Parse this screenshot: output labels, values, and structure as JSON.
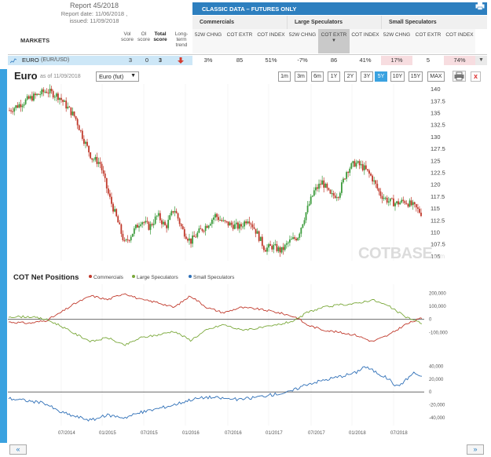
{
  "report": {
    "title": "Report 45/2018",
    "date_line": "Report date: 11/06/2018 ,",
    "issued_line": "issued: 11/09/2018"
  },
  "table_header": {
    "markets": "MARKETS",
    "vol_score": "Vol score",
    "oi_score": "OI score",
    "total_score": "Total score",
    "long_term_trend": "Long-term trend",
    "classic_data": "CLASSIC DATA – FUTURES ONLY",
    "groups": [
      "Commercials",
      "Large Speculators",
      "Small Speculators"
    ],
    "columns": [
      {
        "label": "52W CHNG"
      },
      {
        "label": "COT EXTR"
      },
      {
        "label": "COT INDEX"
      },
      {
        "label": "52W CHNG"
      },
      {
        "label": "COT EXTR",
        "sorted": true
      },
      {
        "label": "COT INDEX"
      },
      {
        "label": "52W CHNG"
      },
      {
        "label": "COT EXTR"
      },
      {
        "label": "COT INDEX"
      }
    ]
  },
  "row": {
    "market": "EURO",
    "symbol": "(EUR/USD)",
    "vol_score": "3",
    "oi_score": "0",
    "total_score": "3",
    "trend": "down",
    "values": [
      "3%",
      "85",
      "51%",
      "-7%",
      "86",
      "41%",
      "17%",
      "5",
      "74%"
    ],
    "highlight": [
      false,
      false,
      false,
      false,
      false,
      false,
      true,
      false,
      true
    ]
  },
  "chart_header": {
    "title": "Euro",
    "as_of": "as of 11/09/2018",
    "contract": "Euro (fut)",
    "ranges": [
      "1m",
      "3m",
      "6m",
      "1Y",
      "2Y",
      "3Y",
      "5Y",
      "10Y",
      "15Y",
      "MAX"
    ],
    "active_range": "5Y",
    "close": "x"
  },
  "watermark": {
    "main": "COTBASE",
    "suffix": ".com"
  },
  "positions": {
    "title": "COT Net Positions",
    "legend": [
      "Commercials",
      "Large Speculators",
      "Small Speculators"
    ]
  },
  "nav": {
    "prev": "«",
    "next": "»"
  },
  "chart_data": [
    {
      "type": "candlestick",
      "title": "Euro",
      "x_tick_labels": [
        "07/2014",
        "01/2015",
        "07/2015",
        "01/2016",
        "07/2016",
        "01/2017",
        "07/2017",
        "01/2018",
        "07/2018"
      ],
      "y_ticks": [
        105,
        107.5,
        110,
        112.5,
        115,
        117.5,
        120,
        122.5,
        125,
        127.5,
        130,
        132.5,
        135,
        137.5,
        140
      ],
      "ylim": [
        104,
        141
      ],
      "close_path": [
        {
          "x": 0.0,
          "y": 135.5
        },
        {
          "x": 0.05,
          "y": 138.0
        },
        {
          "x": 0.09,
          "y": 139.6
        },
        {
          "x": 0.12,
          "y": 138.4
        },
        {
          "x": 0.16,
          "y": 134.0
        },
        {
          "x": 0.18,
          "y": 129.5
        },
        {
          "x": 0.2,
          "y": 125.5
        },
        {
          "x": 0.22,
          "y": 124.5
        },
        {
          "x": 0.24,
          "y": 118.0
        },
        {
          "x": 0.26,
          "y": 113.0
        },
        {
          "x": 0.28,
          "y": 107.5
        },
        {
          "x": 0.3,
          "y": 110.0
        },
        {
          "x": 0.32,
          "y": 112.5
        },
        {
          "x": 0.34,
          "y": 111.0
        },
        {
          "x": 0.36,
          "y": 113.5
        },
        {
          "x": 0.38,
          "y": 111.0
        },
        {
          "x": 0.4,
          "y": 115.0
        },
        {
          "x": 0.42,
          "y": 110.5
        },
        {
          "x": 0.44,
          "y": 108.0
        },
        {
          "x": 0.46,
          "y": 110.0
        },
        {
          "x": 0.48,
          "y": 111.5
        },
        {
          "x": 0.5,
          "y": 113.5
        },
        {
          "x": 0.52,
          "y": 112.0
        },
        {
          "x": 0.54,
          "y": 111.5
        },
        {
          "x": 0.56,
          "y": 111.0
        },
        {
          "x": 0.58,
          "y": 113.0
        },
        {
          "x": 0.6,
          "y": 110.0
        },
        {
          "x": 0.62,
          "y": 106.5
        },
        {
          "x": 0.64,
          "y": 107.0
        },
        {
          "x": 0.66,
          "y": 106.0
        },
        {
          "x": 0.68,
          "y": 108.0
        },
        {
          "x": 0.7,
          "y": 109.0
        },
        {
          "x": 0.72,
          "y": 114.0
        },
        {
          "x": 0.74,
          "y": 118.5
        },
        {
          "x": 0.76,
          "y": 120.5
        },
        {
          "x": 0.78,
          "y": 117.5
        },
        {
          "x": 0.8,
          "y": 118.0
        },
        {
          "x": 0.82,
          "y": 123.0
        },
        {
          "x": 0.84,
          "y": 124.5
        },
        {
          "x": 0.86,
          "y": 123.5
        },
        {
          "x": 0.88,
          "y": 121.5
        },
        {
          "x": 0.9,
          "y": 118.0
        },
        {
          "x": 0.92,
          "y": 116.5
        },
        {
          "x": 0.94,
          "y": 116.0
        },
        {
          "x": 0.96,
          "y": 116.5
        },
        {
          "x": 0.98,
          "y": 115.5
        },
        {
          "x": 1.0,
          "y": 114.0
        }
      ]
    },
    {
      "type": "line",
      "title": "COT Net Positions",
      "y_ticks_upper": [
        -100000,
        0,
        100000,
        200000
      ],
      "y_ticks_lower": [
        -40000,
        -20000,
        0,
        20000,
        40000
      ],
      "series": [
        {
          "name": "Commercials",
          "color": "#c0392b",
          "points": [
            [
              0.0,
              -20000
            ],
            [
              0.05,
              -30000
            ],
            [
              0.09,
              -10000
            ],
            [
              0.12,
              40000
            ],
            [
              0.16,
              120000
            ],
            [
              0.2,
              180000
            ],
            [
              0.24,
              150000
            ],
            [
              0.28,
              200000
            ],
            [
              0.32,
              150000
            ],
            [
              0.36,
              130000
            ],
            [
              0.4,
              90000
            ],
            [
              0.44,
              180000
            ],
            [
              0.48,
              90000
            ],
            [
              0.52,
              50000
            ],
            [
              0.56,
              90000
            ],
            [
              0.6,
              80000
            ],
            [
              0.64,
              60000
            ],
            [
              0.68,
              30000
            ],
            [
              0.7,
              10000
            ],
            [
              0.72,
              -40000
            ],
            [
              0.76,
              -80000
            ],
            [
              0.8,
              -100000
            ],
            [
              0.84,
              -120000
            ],
            [
              0.88,
              -170000
            ],
            [
              0.92,
              -120000
            ],
            [
              0.96,
              -40000
            ],
            [
              1.0,
              10000
            ]
          ]
        },
        {
          "name": "Large Speculators",
          "color": "#7aa83a",
          "points": [
            [
              0.0,
              20000
            ],
            [
              0.05,
              20000
            ],
            [
              0.09,
              0
            ],
            [
              0.12,
              -40000
            ],
            [
              0.16,
              -110000
            ],
            [
              0.2,
              -170000
            ],
            [
              0.24,
              -140000
            ],
            [
              0.28,
              -200000
            ],
            [
              0.32,
              -140000
            ],
            [
              0.36,
              -120000
            ],
            [
              0.4,
              -90000
            ],
            [
              0.44,
              -160000
            ],
            [
              0.48,
              -80000
            ],
            [
              0.52,
              -40000
            ],
            [
              0.56,
              -80000
            ],
            [
              0.6,
              -70000
            ],
            [
              0.64,
              -50000
            ],
            [
              0.68,
              -20000
            ],
            [
              0.7,
              0
            ],
            [
              0.72,
              50000
            ],
            [
              0.76,
              90000
            ],
            [
              0.8,
              110000
            ],
            [
              0.84,
              120000
            ],
            [
              0.88,
              150000
            ],
            [
              0.92,
              100000
            ],
            [
              0.96,
              20000
            ],
            [
              1.0,
              -30000
            ]
          ]
        },
        {
          "name": "Small Speculators",
          "color": "#2e6fb7",
          "points": [
            [
              0.0,
              -10000
            ],
            [
              0.05,
              -14000
            ],
            [
              0.09,
              -18000
            ],
            [
              0.12,
              -30000
            ],
            [
              0.16,
              -38000
            ],
            [
              0.2,
              -44000
            ],
            [
              0.24,
              -36000
            ],
            [
              0.28,
              -40000
            ],
            [
              0.32,
              -32000
            ],
            [
              0.36,
              -26000
            ],
            [
              0.4,
              -20000
            ],
            [
              0.44,
              -12000
            ],
            [
              0.48,
              -8000
            ],
            [
              0.52,
              -10000
            ],
            [
              0.56,
              -12000
            ],
            [
              0.6,
              -8000
            ],
            [
              0.64,
              -4000
            ],
            [
              0.68,
              0
            ],
            [
              0.7,
              6000
            ],
            [
              0.72,
              12000
            ],
            [
              0.76,
              18000
            ],
            [
              0.8,
              24000
            ],
            [
              0.84,
              30000
            ],
            [
              0.86,
              40000
            ],
            [
              0.88,
              34000
            ],
            [
              0.92,
              20000
            ],
            [
              0.94,
              8000
            ],
            [
              0.96,
              18000
            ],
            [
              0.98,
              30000
            ],
            [
              1.0,
              24000
            ]
          ]
        }
      ]
    }
  ]
}
